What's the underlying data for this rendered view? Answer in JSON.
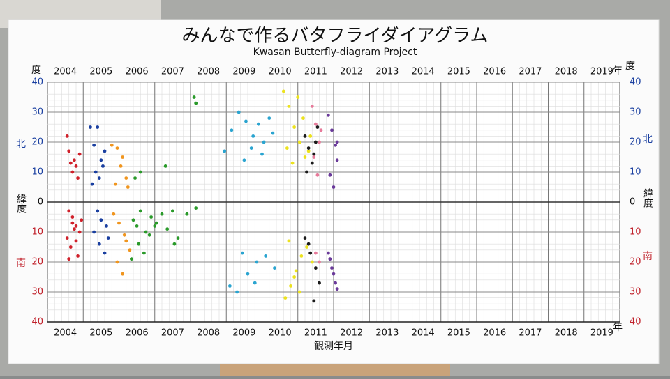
{
  "chart_data": {
    "type": "scatter",
    "title": "みんなで作るバタフライダイアグラム",
    "subtitle": "Kwasan Butterfly-diagram Project",
    "x_label": "観測年月",
    "x_unit": "年",
    "y_label": "緯度",
    "y_unit": "度",
    "north_label": "北",
    "south_label": "南",
    "categories": [
      "2004",
      "2005",
      "2006",
      "2007",
      "2008",
      "2009",
      "2010",
      "2011",
      "2012",
      "2013",
      "2014",
      "2015",
      "2016",
      "2017",
      "2018",
      "2019"
    ],
    "xlim": [
      2004,
      2020
    ],
    "ylim": [
      -40,
      40
    ],
    "yticks": [
      {
        "value": -40,
        "label": "40"
      },
      {
        "value": -30,
        "label": "30"
      },
      {
        "value": -20,
        "label": "20"
      },
      {
        "value": -10,
        "label": "10"
      },
      0,
      10,
      20,
      30,
      40
    ],
    "grid": true,
    "series": [
      {
        "color": "#d0202a",
        "x": [
          2004.55,
          2004.6,
          2004.65,
          2004.7,
          2004.75,
          2004.8,
          2004.85,
          2004.9,
          2004.6,
          2004.7,
          2004.8,
          2004.9,
          2004.55,
          2004.65,
          2004.75,
          2004.85,
          2004.95,
          2004.6,
          2004.8,
          2004.7
        ],
        "y": [
          22,
          17,
          13,
          10,
          14,
          12,
          8,
          16,
          -3,
          -5,
          -8,
          -10,
          -12,
          -15,
          -9,
          -18,
          -6,
          -19,
          -13,
          -7
        ]
      },
      {
        "color": "#1a3fa0",
        "x": [
          2005.2,
          2005.3,
          2005.4,
          2005.5,
          2005.6,
          2005.35,
          2005.45,
          2005.55,
          2005.25,
          2005.4,
          2005.5,
          2005.65,
          2005.3,
          2005.45,
          2005.6,
          2005.7
        ],
        "y": [
          25,
          19,
          25,
          14,
          17,
          10,
          8,
          12,
          6,
          -3,
          -6,
          -8,
          -10,
          -14,
          -17,
          -12
        ]
      },
      {
        "color": "#f0951e",
        "x": [
          2005.8,
          2005.95,
          2006.1,
          2006.2,
          2005.9,
          2006.05,
          2006.25,
          2005.85,
          2006.0,
          2006.15,
          2006.3,
          2005.95,
          2006.1,
          2006.2
        ],
        "y": [
          19,
          18,
          15,
          8,
          6,
          12,
          5,
          -4,
          -7,
          -11,
          -16,
          -20,
          -24,
          -13
        ]
      },
      {
        "color": "#2a9a2a",
        "x": [
          2006.4,
          2006.5,
          2006.6,
          2006.75,
          2006.9,
          2007.05,
          2007.2,
          2007.35,
          2007.5,
          2007.65,
          2007.9,
          2008.15,
          2006.55,
          2006.7,
          2006.85,
          2007.0,
          2006.45,
          2006.6,
          2007.3,
          2008.1,
          2008.15,
          2006.35,
          2007.55
        ],
        "y": [
          -6,
          -8,
          -3,
          -10,
          -5,
          -7,
          -4,
          -9,
          -3,
          -12,
          -4,
          -2,
          -14,
          -17,
          -11,
          -8,
          8,
          10,
          12,
          35,
          33,
          -19,
          -14
        ]
      },
      {
        "color": "#2aa4d0",
        "x": [
          2008.95,
          2009.15,
          2009.35,
          2009.55,
          2009.75,
          2009.9,
          2010.05,
          2010.2,
          2009.5,
          2009.7,
          2010.0,
          2010.3,
          2009.1,
          2009.3,
          2009.6,
          2009.85,
          2010.1,
          2010.35,
          2009.45,
          2009.8
        ],
        "y": [
          17,
          24,
          30,
          27,
          22,
          26,
          20,
          28,
          14,
          18,
          16,
          23,
          -28,
          -30,
          -24,
          -20,
          -18,
          -22,
          -17,
          -27
        ]
      },
      {
        "color": "#ece21e",
        "x": [
          2010.6,
          2010.75,
          2010.9,
          2011.05,
          2011.2,
          2011.35,
          2010.7,
          2010.85,
          2011.0,
          2011.15,
          2011.3,
          2010.65,
          2010.8,
          2010.95,
          2011.1,
          2011.25,
          2011.4,
          2010.75,
          2011.05,
          2010.9
        ],
        "y": [
          37,
          32,
          25,
          20,
          15,
          22,
          18,
          13,
          35,
          28,
          17,
          -32,
          -28,
          -23,
          -18,
          -15,
          -20,
          -13,
          -30,
          -25
        ]
      },
      {
        "color": "#1a1a1a",
        "x": [
          2011.2,
          2011.3,
          2011.4,
          2011.5,
          2011.25,
          2011.45,
          2011.55,
          2011.2,
          2011.35,
          2011.5,
          2011.6,
          2011.3,
          2011.45
        ],
        "y": [
          22,
          18,
          13,
          20,
          10,
          16,
          25,
          -12,
          -17,
          -22,
          -27,
          -14,
          -33
        ]
      },
      {
        "color": "#e77a9a",
        "x": [
          2011.4,
          2011.5,
          2011.6,
          2011.45,
          2011.55,
          2011.65,
          2011.5,
          2011.6
        ],
        "y": [
          32,
          26,
          20,
          15,
          9,
          24,
          -17,
          -20
        ]
      },
      {
        "color": "#6a3a9a",
        "x": [
          2011.85,
          2011.95,
          2012.05,
          2012.1,
          2011.9,
          2012.0,
          2012.1,
          2011.85,
          2011.95,
          2012.05,
          2012.1,
          2011.9,
          2012.0
        ],
        "y": [
          29,
          24,
          19,
          14,
          9,
          5,
          20,
          -17,
          -22,
          -27,
          -29,
          -19,
          -24
        ]
      }
    ]
  }
}
